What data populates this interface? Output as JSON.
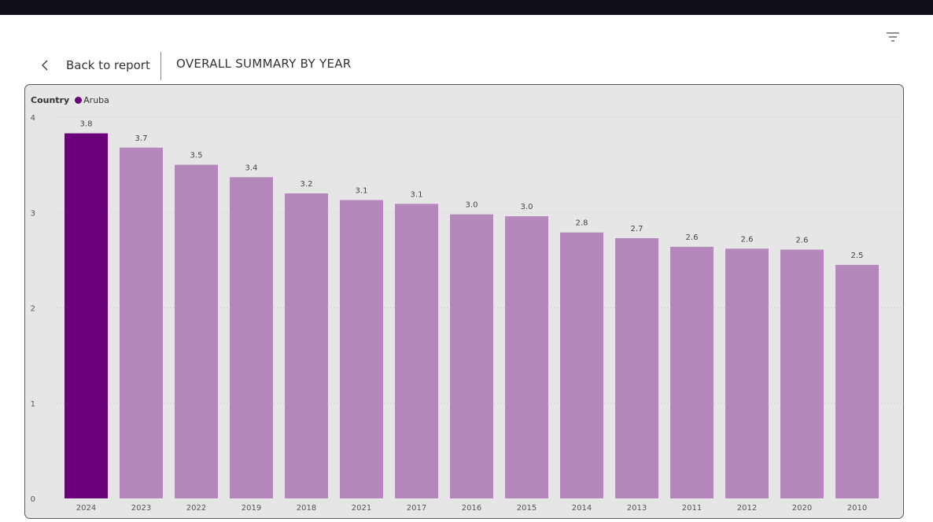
{
  "header": {
    "back_label": "Back to report",
    "title": "OVERALL SUMMARY BY YEAR",
    "filter_icon": "filter-icon",
    "back_icon": "chevron-left-icon"
  },
  "colors": {
    "highlight": "#6a007a",
    "bar": "#b488bb",
    "legend_dot": "#6a007a"
  },
  "chart_data": {
    "type": "bar",
    "legend": {
      "title": "Country",
      "entries": [
        "Aruba"
      ],
      "placement": "top-left"
    },
    "categories": [
      "2024",
      "2023",
      "2022",
      "2019",
      "2018",
      "2021",
      "2017",
      "2016",
      "2015",
      "2014",
      "2013",
      "2011",
      "2012",
      "2020",
      "2010"
    ],
    "values": [
      3.83,
      3.68,
      3.5,
      3.37,
      3.2,
      3.13,
      3.09,
      2.98,
      2.96,
      2.79,
      2.73,
      2.64,
      2.62,
      2.61,
      2.45
    ],
    "data_labels": [
      "3.8",
      "3.7",
      "3.5",
      "3.4",
      "3.2",
      "3.1",
      "3.1",
      "3.0",
      "3.0",
      "2.8",
      "2.7",
      "2.6",
      "2.6",
      "2.6",
      "2.5"
    ],
    "highlighted_category": "2024",
    "yticks": [
      "0",
      "1",
      "2",
      "3",
      "4"
    ],
    "ylim": [
      0,
      4
    ],
    "grid": true,
    "title": "",
    "xlabel": "",
    "ylabel": ""
  }
}
